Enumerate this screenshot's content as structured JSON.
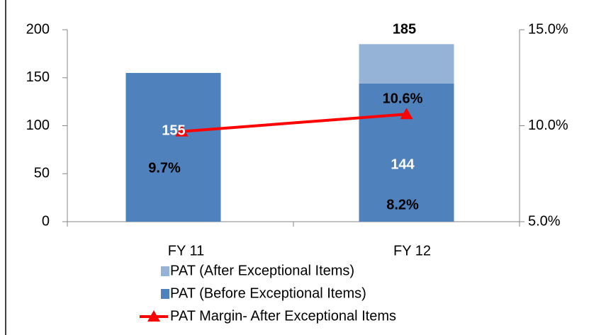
{
  "chart_data": {
    "type": "bar",
    "categories": [
      "FY 11",
      "FY 12"
    ],
    "series": [
      {
        "name": "PAT (Before Exceptional Items)",
        "color": "#4f81bd",
        "values": [
          155,
          144
        ]
      },
      {
        "name": "PAT (After Exceptional Items)",
        "color": "#95b3d7",
        "values": [
          null,
          41
        ]
      },
      {
        "name": "PAT Margin- After Exceptional Items",
        "color": "#ff0000",
        "type": "line",
        "axis": "y2",
        "values": [
          9.7,
          10.6
        ],
        "value_labels": [
          "9.7%",
          "10.6%"
        ]
      }
    ],
    "totals": [
      null,
      185
    ],
    "annotations": [
      {
        "text": "8.2%"
      }
    ],
    "ylim": [
      0,
      200
    ],
    "yticks": [
      0,
      50,
      100,
      150,
      200
    ],
    "y2lim": [
      5,
      15
    ],
    "y2ticks": [
      {
        "value": 5,
        "label": "5.0%"
      },
      {
        "value": 10,
        "label": "10.0%"
      },
      {
        "value": 15,
        "label": "15.0%"
      }
    ],
    "stacked": true
  }
}
